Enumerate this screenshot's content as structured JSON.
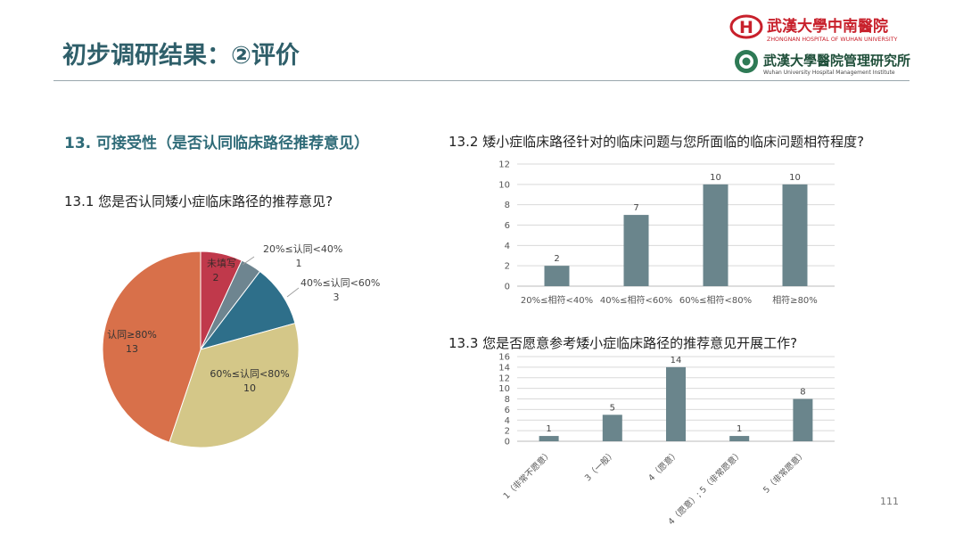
{
  "page": {
    "title": "初步调研结果：②评价",
    "section_title": "13. 可接受性（是否认同临床路径推荐意见）",
    "page_number": "111"
  },
  "logos": {
    "hospital_cn": "武漢大學中南醫院",
    "hospital_en": "ZHONGNAN HOSPITAL OF WUHAN UNIVERSITY",
    "institute_cn": "武漢大學醫院管理研究所",
    "institute_en": "Wuhan University Hospital Management Institute",
    "brand_color": "#c8202b"
  },
  "questions": {
    "q1": "13.1 您是否认同矮小症临床路径的推荐意见?",
    "q2": "13.2 矮小症临床路径针对的临床问题与您所面临的临床问题相符程度?",
    "q3": "13.3 您是否愿意参考矮小症临床路径的推荐意见开展工作?"
  },
  "chart_data": [
    {
      "type": "pie",
      "slices": [
        {
          "label": "未填写",
          "value": 2,
          "color": "#c0394b"
        },
        {
          "label": "20%≤认同<40%",
          "value": 1,
          "color": "#6e8590"
        },
        {
          "label": "40%≤认同<60%",
          "value": 3,
          "color": "#2e6f8a"
        },
        {
          "label": "60%≤认同<80%",
          "value": 10,
          "color": "#d4c788"
        },
        {
          "label": "认同≥80%",
          "value": 13,
          "color": "#d8704a"
        }
      ]
    },
    {
      "type": "bar",
      "categories": [
        "20%≤相符<40%",
        "40%≤相符<60%",
        "60%≤相符<80%",
        "相符≥80%"
      ],
      "values": [
        2,
        7,
        10,
        10
      ],
      "ylim": [
        0,
        12
      ],
      "yticks": [
        0,
        2,
        4,
        6,
        8,
        10,
        12
      ],
      "grid": true,
      "color": "#6a858c"
    },
    {
      "type": "bar",
      "categories": [
        "1（非常不愿意）",
        "3（一般）",
        "4（愿意）",
        "4（愿意）; 5（非常愿意）",
        "5（非常愿意）"
      ],
      "values": [
        1,
        5,
        14,
        1,
        8
      ],
      "ylim": [
        0,
        16
      ],
      "yticks": [
        0,
        2,
        4,
        6,
        8,
        10,
        12,
        14,
        16
      ],
      "grid": true,
      "color": "#6a858c"
    }
  ]
}
